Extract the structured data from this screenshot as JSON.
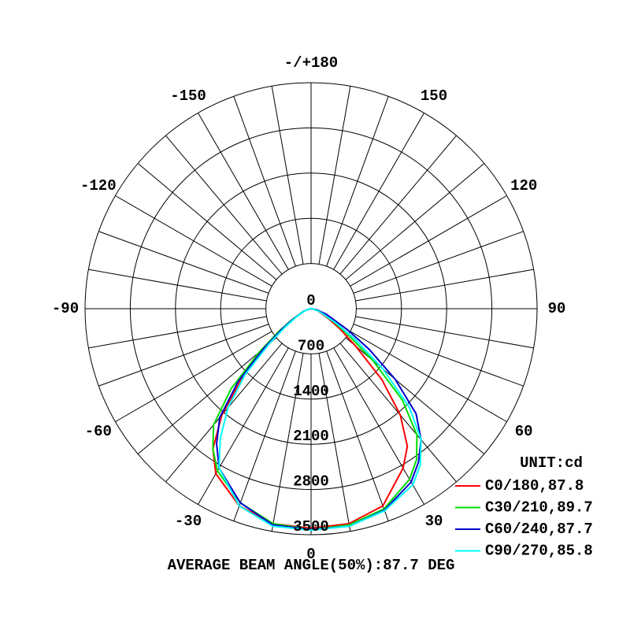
{
  "chart_data": {
    "type": "polar",
    "footer": "AVERAGE BEAM ANGLE(50%):87.7 DEG",
    "unit_label": "UNIT:cd",
    "x": [
      -90,
      -80,
      -70,
      -60,
      -55,
      -50,
      -45,
      -40,
      -35,
      -30,
      -20,
      -10,
      0,
      10,
      20,
      30,
      35,
      40,
      45,
      50,
      55,
      60,
      70,
      80,
      90
    ],
    "series": [
      {
        "name": "C0/180,87.8",
        "color": "#ff0000",
        "values": [
          0,
          40,
          120,
          300,
          500,
          850,
          1500,
          2150,
          2650,
          2950,
          3250,
          3380,
          3400,
          3380,
          3250,
          2850,
          2600,
          2150,
          1550,
          900,
          550,
          320,
          130,
          40,
          0
        ]
      },
      {
        "name": "C30/210,89.7",
        "color": "#00dd00",
        "values": [
          0,
          40,
          130,
          350,
          600,
          1050,
          1750,
          2350,
          2650,
          2900,
          3200,
          3380,
          3420,
          3400,
          3300,
          3050,
          2850,
          2550,
          2000,
          1250,
          700,
          400,
          150,
          50,
          0
        ]
      },
      {
        "name": "C60/240,87.7",
        "color": "#0000cc",
        "values": [
          0,
          40,
          120,
          320,
          550,
          950,
          1600,
          2200,
          2550,
          2850,
          3200,
          3400,
          3420,
          3420,
          3320,
          3100,
          2900,
          2650,
          2300,
          1700,
          1100,
          650,
          250,
          80,
          0
        ]
      },
      {
        "name": "C90/270,85.8",
        "color": "#00ffff",
        "values": [
          0,
          40,
          110,
          280,
          480,
          850,
          1450,
          2000,
          2450,
          2850,
          3250,
          3420,
          3430,
          3420,
          3330,
          3150,
          2950,
          2650,
          2150,
          1450,
          850,
          450,
          150,
          50,
          0
        ]
      }
    ],
    "rlim": [
      0,
      3500
    ],
    "rticks": [
      0,
      700,
      1400,
      2100,
      2800,
      3500
    ],
    "xticks": [
      {
        "value": 180,
        "label": "-/+180"
      },
      -150,
      150,
      -120,
      120,
      -90,
      90,
      -60,
      60,
      -30,
      30,
      0
    ]
  }
}
